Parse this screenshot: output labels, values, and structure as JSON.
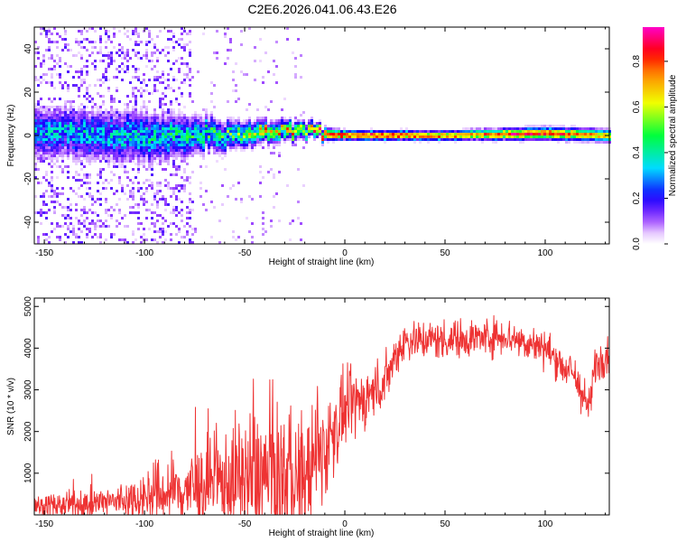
{
  "figure_title": "C2E6.2026.041.06.43.E26",
  "chart_data": [
    {
      "type": "heatmap",
      "xlabel": "Height of straight line (km)",
      "ylabel": "Frequency (Hz)",
      "xlim": [
        -155,
        132
      ],
      "ylim": [
        -50,
        50
      ],
      "xticks": [
        -150,
        -100,
        -50,
        0,
        50,
        100
      ],
      "yticks": [
        -40,
        -20,
        0,
        20,
        40
      ],
      "colorbar": {
        "label": "Normalized spectral amplitude",
        "range": [
          0,
          0.95
        ],
        "ticks": [
          0.0,
          0.2,
          0.4,
          0.6,
          0.8
        ],
        "colormap": "rainbow (white → violet → blue → cyan → green → yellow → red → magenta)"
      },
      "band_center_hz": [
        {
          "x": -150,
          "y": 1
        },
        {
          "x": -100,
          "y": -1
        },
        {
          "x": -75,
          "y": 0
        },
        {
          "x": -50,
          "y": 1
        },
        {
          "x": -25,
          "y": 2
        },
        {
          "x": 0,
          "y": 0
        },
        {
          "x": 50,
          "y": 0
        },
        {
          "x": 100,
          "y": 1
        },
        {
          "x": 130,
          "y": 0
        }
      ],
      "band_halfwidth_hz": [
        {
          "x": -150,
          "y": 8
        },
        {
          "x": -100,
          "y": 8
        },
        {
          "x": -75,
          "y": 6
        },
        {
          "x": -50,
          "y": 4
        },
        {
          "x": -25,
          "y": 3
        },
        {
          "x": -10,
          "y": 2
        },
        {
          "x": 0,
          "y": 1.5
        },
        {
          "x": 50,
          "y": 1.5
        },
        {
          "x": 100,
          "y": 2
        },
        {
          "x": 130,
          "y": 2
        }
      ],
      "peak_amplitude": [
        {
          "x": -150,
          "y": 0.35
        },
        {
          "x": -100,
          "y": 0.4
        },
        {
          "x": -60,
          "y": 0.5
        },
        {
          "x": -40,
          "y": 0.7
        },
        {
          "x": -20,
          "y": 0.75
        },
        {
          "x": 0,
          "y": 0.9
        },
        {
          "x": 30,
          "y": 0.85
        },
        {
          "x": 60,
          "y": 0.75
        },
        {
          "x": 90,
          "y": 0.9
        },
        {
          "x": 130,
          "y": 0.7
        }
      ],
      "grid": false
    },
    {
      "type": "line",
      "xlabel": "Height of straight line (km)",
      "ylabel": "SNR (10 * v/v)",
      "xlim": [
        -155,
        132
      ],
      "ylim": [
        0,
        5200
      ],
      "xticks": [
        -150,
        -100,
        -50,
        0,
        50,
        100
      ],
      "yticks": [
        1000,
        2000,
        3000,
        4000,
        5000
      ],
      "color": "#ee3333",
      "baseline": [
        {
          "x": -155,
          "y": 200
        },
        {
          "x": -130,
          "y": 250
        },
        {
          "x": -110,
          "y": 350
        },
        {
          "x": -100,
          "y": 450
        },
        {
          "x": -80,
          "y": 600
        },
        {
          "x": -60,
          "y": 800
        },
        {
          "x": -40,
          "y": 900
        },
        {
          "x": -20,
          "y": 900
        },
        {
          "x": -10,
          "y": 1600
        },
        {
          "x": 0,
          "y": 2500
        },
        {
          "x": 10,
          "y": 2800
        },
        {
          "x": 20,
          "y": 3200
        },
        {
          "x": 25,
          "y": 3800
        },
        {
          "x": 30,
          "y": 4200
        },
        {
          "x": 50,
          "y": 4200
        },
        {
          "x": 80,
          "y": 4300
        },
        {
          "x": 100,
          "y": 4000
        },
        {
          "x": 115,
          "y": 3300
        },
        {
          "x": 122,
          "y": 2500
        },
        {
          "x": 125,
          "y": 3600
        },
        {
          "x": 132,
          "y": 4000
        }
      ],
      "noise_amplitude": [
        {
          "x": -155,
          "y": 200
        },
        {
          "x": -110,
          "y": 350
        },
        {
          "x": -90,
          "y": 700
        },
        {
          "x": -60,
          "y": 900
        },
        {
          "x": -50,
          "y": 1500
        },
        {
          "x": -30,
          "y": 1300
        },
        {
          "x": -12,
          "y": 1100
        },
        {
          "x": 0,
          "y": 700
        },
        {
          "x": 30,
          "y": 400
        },
        {
          "x": 100,
          "y": 350
        },
        {
          "x": 132,
          "y": 450
        }
      ],
      "grid": false
    }
  ]
}
